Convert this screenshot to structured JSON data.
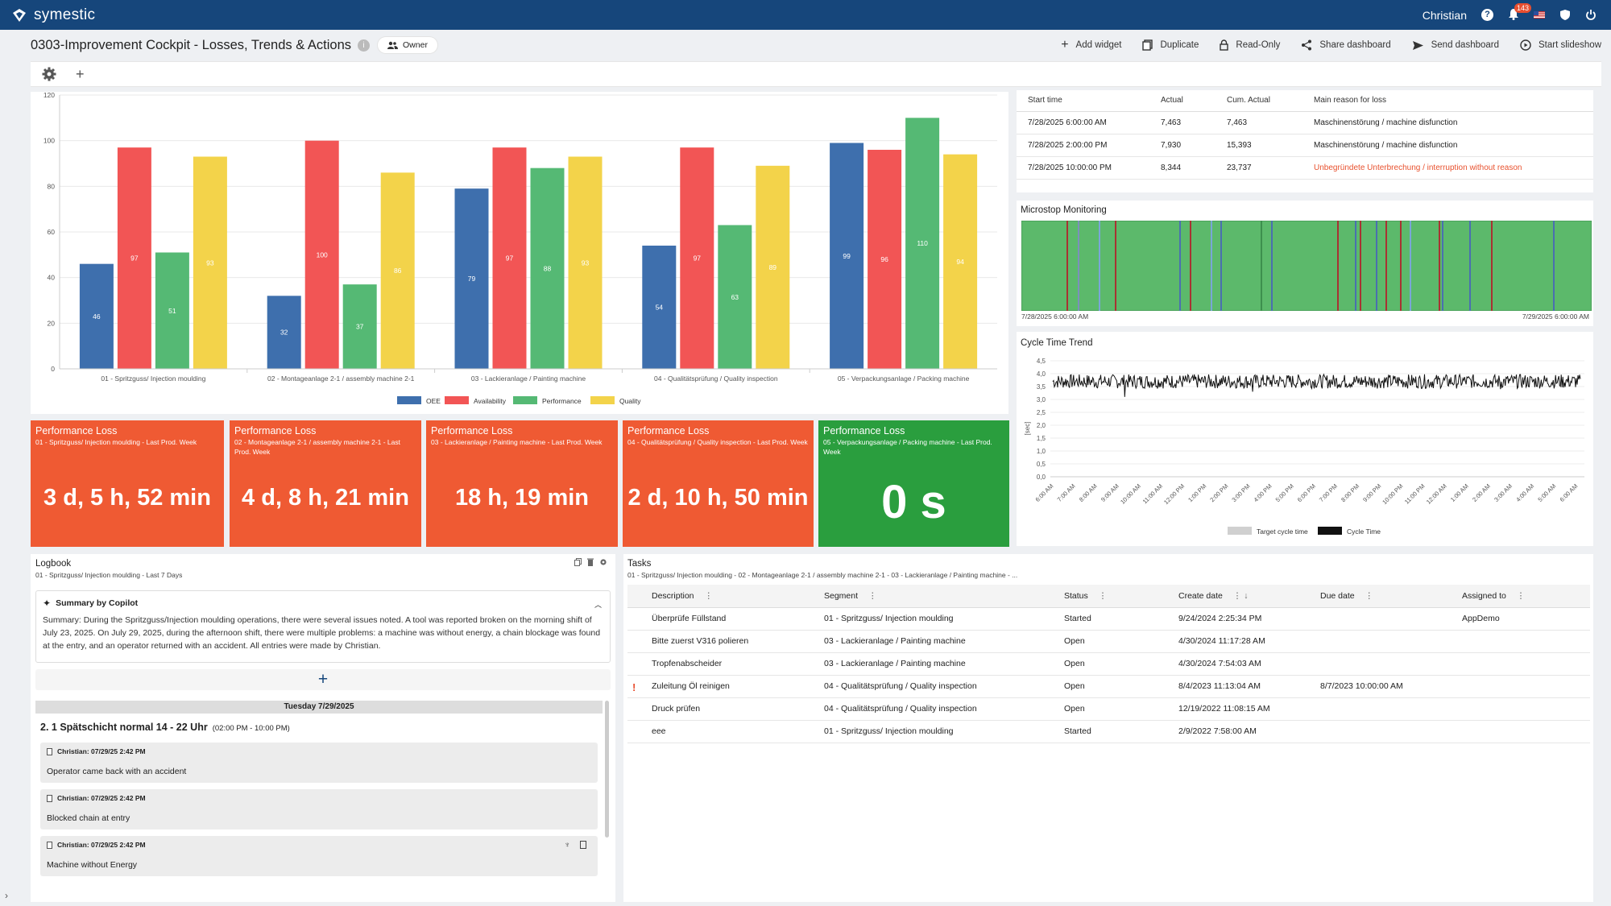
{
  "app": {
    "brand": "symestic",
    "user": "Christian",
    "notifications": "143"
  },
  "dashboard": {
    "title": "0303-Improvement Cockpit - Losses, Trends & Actions",
    "owner_label": "Owner",
    "actions": [
      "Add widget",
      "Duplicate",
      "Read-Only",
      "Share dashboard",
      "Send dashboard",
      "Start slideshow"
    ]
  },
  "colors": {
    "header": "#16467b",
    "oee": "#3e6fad",
    "availability": "#f25555",
    "performance": "#55b974",
    "quality": "#f3d34a",
    "loss_red": "#ef5a33",
    "loss_green": "#2a9e3e"
  },
  "chart_data": {
    "type": "bar",
    "categories": [
      "01 - Spritzguss/ Injection moulding",
      "02 - Montageanlage 2-1 / assembly machine 2-1",
      "03 - Lackieranlage / Painting machine",
      "04 - Qualitätsprüfung / Quality inspection",
      "05 - Verpackungsanlage / Packing machine"
    ],
    "series": [
      {
        "name": "OEE",
        "values": [
          46,
          32,
          79,
          54,
          99
        ]
      },
      {
        "name": "Availability",
        "values": [
          97,
          100,
          97,
          97,
          96
        ]
      },
      {
        "name": "Performance",
        "values": [
          51,
          37,
          88,
          63,
          110
        ]
      },
      {
        "name": "Quality",
        "values": [
          93,
          86,
          93,
          89,
          94
        ]
      }
    ],
    "yticks": [
      "0",
      "20",
      "40",
      "60",
      "80",
      "100",
      "120"
    ],
    "ylim": [
      0,
      120
    ],
    "legend": "bottom"
  },
  "losses": [
    {
      "title": "Performance Loss",
      "subtitle": "01 - Spritzguss/ Injection moulding - Last Prod. Week",
      "value": "3 d, 5 h, 52 min",
      "status": "red"
    },
    {
      "title": "Performance Loss",
      "subtitle": "02 - Montageanlage 2-1 / assembly machine 2-1 - Last Prod. Week",
      "value": "4 d, 8 h, 21 min",
      "status": "red"
    },
    {
      "title": "Performance Loss",
      "subtitle": "03 - Lackieranlage / Painting machine - Last Prod. Week",
      "value": "18 h, 19 min",
      "status": "red"
    },
    {
      "title": "Performance Loss",
      "subtitle": "04 - Qualitätsprüfung / Quality inspection - Last Prod. Week",
      "value": "2 d, 10 h, 50 min",
      "status": "red"
    },
    {
      "title": "Performance Loss",
      "subtitle": "05 - Verpackungsanlage / Packing machine - Last Prod. Week",
      "value": "0 s",
      "status": "green"
    }
  ],
  "shifts": {
    "headers": [
      "Start time",
      "Actual",
      "Cum. Actual",
      "Main reason for loss"
    ],
    "rows": [
      [
        "7/28/2025 6:00:00 AM",
        "7,463",
        "7,463",
        "Maschinenstörung / machine disfunction"
      ],
      [
        "7/28/2025 2:00:00 PM",
        "7,930",
        "15,393",
        "Maschinenstörung / machine disfunction"
      ],
      [
        "7/28/2025 10:00:00 PM",
        "8,344",
        "23,737",
        "Unbegründete Unterbrechung / interruption without reason"
      ]
    ]
  },
  "microstop": {
    "title": "Microstop Monitoring",
    "start": "7/28/2025 6:00:00 AM",
    "end": "7/29/2025 6:00:00 AM"
  },
  "cycle": {
    "title": "Cycle Time Trend",
    "ylabel": "[sec]",
    "yticks": [
      "0,0",
      "0,5",
      "1,0",
      "1,5",
      "2,0",
      "2,5",
      "3,0",
      "3,5",
      "4,0",
      "4,5"
    ],
    "xticks": [
      "6:00 AM",
      "7:00 AM",
      "8:00 AM",
      "9:00 AM",
      "10:00 AM",
      "11:00 AM",
      "12:00 PM",
      "1:00 PM",
      "2:00 PM",
      "3:00 PM",
      "4:00 PM",
      "5:00 PM",
      "6:00 PM",
      "7:00 PM",
      "8:00 PM",
      "9:00 PM",
      "10:00 PM",
      "11:00 PM",
      "12:00 AM",
      "1:00 AM",
      "2:00 AM",
      "3:00 AM",
      "4:00 AM",
      "5:00 AM",
      "6:00 AM"
    ],
    "legend": [
      "Target cycle time",
      "Cycle Time"
    ]
  },
  "logbook": {
    "title": "Logbook",
    "subtitle": "01 - Spritzguss/ Injection moulding - Last 7 Days",
    "summary_title": "Summary by Copilot",
    "summary": "Summary: During the Spritzguss/Injection moulding operations, there were several issues noted. A tool was reported broken on the morning shift of July 23, 2025. On July 29, 2025, during the afternoon shift, there were multiple problems: a machine was without energy, a chain blockage was found at the entry, and an operator returned with an accident. All entries were made by Christian.",
    "day": "Tuesday 7/29/2025",
    "shift": "2. 1 Spätschicht normal 14 - 22 Uhr",
    "shift_time": "(02:00 PM  -  10:00 PM)",
    "entries": [
      {
        "who": "Christian: 07/29/25 2:42 PM",
        "text": "Operator came back with an accident"
      },
      {
        "who": "Christian: 07/29/25 2:42 PM",
        "text": "Blocked chain at entry"
      },
      {
        "who": "Christian: 07/29/25 2:42 PM",
        "text": "Machine without Energy"
      }
    ]
  },
  "tasks": {
    "title": "Tasks",
    "subtitle": "01 - Spritzguss/ Injection moulding - 02 - Montageanlage 2-1 / assembly machine 2-1 - 03 - Lackieranlage / Painting machine - ...",
    "headers": [
      "Description",
      "Segment",
      "Status",
      "Create date",
      "Due date",
      "Assigned to"
    ],
    "rows": [
      [
        "Überprüfe Füllstand",
        "01 - Spritzguss/ Injection moulding",
        "Started",
        "9/24/2024 2:25:34 PM",
        "",
        "AppDemo"
      ],
      [
        "Bitte zuerst V316 polieren",
        "03 - Lackieranlage / Painting machine",
        "Open",
        "4/30/2024 11:17:28 AM",
        "",
        ""
      ],
      [
        "Tropfenabscheider",
        "03 - Lackieranlage / Painting machine",
        "Open",
        "4/30/2024 7:54:03 AM",
        "",
        ""
      ],
      [
        "Zuleitung Öl reinigen",
        "04 - Qualitätsprüfung / Quality inspection",
        "Open",
        "8/4/2023 11:13:04 AM",
        "8/7/2023 10:00:00 AM",
        ""
      ],
      [
        "Druck prüfen",
        "04 - Qualitätsprüfung / Quality inspection",
        "Open",
        "12/19/2022 11:08:15 AM",
        "",
        ""
      ],
      [
        "eee",
        "01 - Spritzguss/ Injection moulding",
        "Started",
        "2/9/2022 7:58:00 AM",
        "",
        ""
      ]
    ]
  }
}
